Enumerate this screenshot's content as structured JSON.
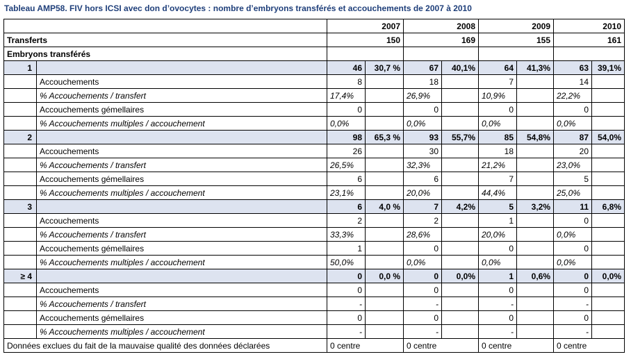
{
  "title": "Tableau AMP58.  FIV hors ICSI avec don d’ovocytes : nombre d’embryons transférés et accouchements de 2007 à 2010",
  "years": [
    "2007",
    "2008",
    "2009",
    "2010"
  ],
  "transferts": {
    "label": "Transferts",
    "values": [
      "150",
      "169",
      "155",
      "161"
    ]
  },
  "embryons_label": "Embryons transférés",
  "groups": [
    {
      "label": "1",
      "values": [
        [
          "46",
          "30,7 %"
        ],
        [
          "67",
          "40,1%"
        ],
        [
          "64",
          "41,3%"
        ],
        [
          "63",
          "39,1%"
        ]
      ],
      "rows": [
        {
          "label": "Accouchements",
          "italic": false,
          "values": [
            "8",
            "18",
            "7",
            "14"
          ]
        },
        {
          "label": "% Accouchements / transfert",
          "italic": true,
          "values": [
            "17,4%",
            "26,9%",
            "10,9%",
            "22,2%"
          ]
        },
        {
          "label": "Accouchements gémellaires",
          "italic": false,
          "values": [
            "0",
            "0",
            "0",
            "0"
          ]
        },
        {
          "label": "% Accouchements multiples / accouchement",
          "italic": true,
          "values": [
            "0,0%",
            "0,0%",
            "0,0%",
            "0,0%"
          ]
        }
      ]
    },
    {
      "label": "2",
      "values": [
        [
          "98",
          "65,3 %"
        ],
        [
          "93",
          "55,7%"
        ],
        [
          "85",
          "54,8%"
        ],
        [
          "87",
          "54,0%"
        ]
      ],
      "rows": [
        {
          "label": "Accouchements",
          "italic": false,
          "values": [
            "26",
            "30",
            "18",
            "20"
          ]
        },
        {
          "label": "% Accouchements / transfert",
          "italic": true,
          "values": [
            "26,5%",
            "32,3%",
            "21,2%",
            "23,0%"
          ]
        },
        {
          "label": "Accouchements gémellaires",
          "italic": false,
          "values": [
            "6",
            "6",
            "7",
            "5"
          ]
        },
        {
          "label": "% Accouchements multiples / accouchement",
          "italic": true,
          "values": [
            "23,1%",
            "20,0%",
            "44,4%",
            "25,0%"
          ]
        }
      ]
    },
    {
      "label": "3",
      "values": [
        [
          "6",
          "4,0 %"
        ],
        [
          "7",
          "4,2%"
        ],
        [
          "5",
          "3,2%"
        ],
        [
          "11",
          "6,8%"
        ]
      ],
      "rows": [
        {
          "label": "Accouchements",
          "italic": false,
          "values": [
            "2",
            "2",
            "1",
            "0"
          ]
        },
        {
          "label": "% Accouchements / transfert",
          "italic": true,
          "values": [
            "33,3%",
            "28,6%",
            "20,0%",
            "0,0%"
          ]
        },
        {
          "label": "Accouchements gémellaires",
          "italic": false,
          "values": [
            "1",
            "0",
            "0",
            "0"
          ]
        },
        {
          "label": "% Accouchements multiples / accouchement",
          "italic": true,
          "values": [
            "50,0%",
            "0,0%",
            "0,0%",
            "0,0%"
          ]
        }
      ]
    },
    {
      "label": "≥ 4",
      "values": [
        [
          "0",
          "0,0 %"
        ],
        [
          "0",
          "0,0%"
        ],
        [
          "1",
          "0,6%"
        ],
        [
          "0",
          "0,0%"
        ]
      ],
      "rows": [
        {
          "label": "Accouchements",
          "italic": false,
          "values": [
            "0",
            "0",
            "0",
            "0"
          ]
        },
        {
          "label": "% Accouchements / transfert",
          "italic": true,
          "values": [
            "-",
            "-",
            "-",
            "-"
          ]
        },
        {
          "label": "Accouchements gémellaires",
          "italic": false,
          "values": [
            "0",
            "0",
            "0",
            "0"
          ]
        },
        {
          "label": "% Accouchements multiples / accouchement",
          "italic": true,
          "values": [
            "-",
            "-",
            "-",
            "-"
          ]
        }
      ]
    }
  ],
  "footer": {
    "label": "Données exclues du fait de la mauvaise qualité des données déclarées",
    "values": [
      "0 centre",
      "0 centre",
      "0 centre",
      "0 centre"
    ]
  }
}
